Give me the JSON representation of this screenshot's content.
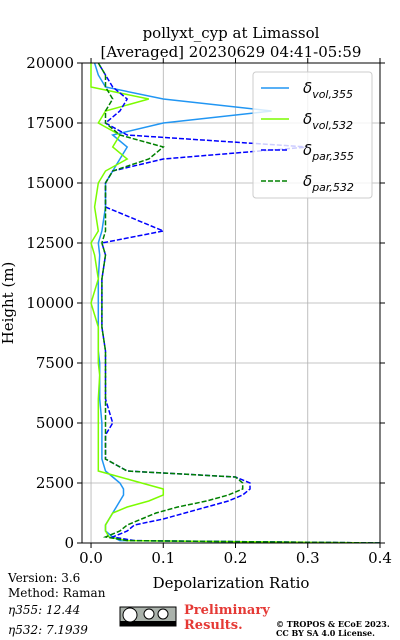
{
  "chart_data": {
    "type": "line",
    "title": [
      "pollyxt_cyp at Limassol",
      "[Averaged] 20230629 04:41-05:59"
    ],
    "x_label": "Depolarization Ratio",
    "y_label": "Height (m)",
    "xlim": [
      -0.0125,
      0.4
    ],
    "ylim": [
      0,
      20000
    ],
    "xticks": [
      {
        "value": 0,
        "label": "0.0"
      },
      0.1,
      0.2,
      0.3,
      0.4
    ],
    "yticks": [
      0,
      2500,
      5000,
      7500,
      10000,
      12500,
      15000,
      17500,
      20000
    ],
    "grid": true,
    "legend": "upper right",
    "y": [
      0,
      100,
      250,
      500,
      750,
      1000,
      1250,
      1500,
      1750,
      2000,
      2250,
      2500,
      2750,
      3000,
      3500,
      4000,
      4500,
      5000,
      6000,
      7000,
      7500,
      8000,
      9000,
      10000,
      11000,
      12000,
      12500,
      13000,
      14000,
      15000,
      15500,
      16000,
      16500,
      17000,
      17500,
      18000,
      18500,
      19000,
      19500,
      20000
    ],
    "series": [
      {
        "name": [
          "δ",
          "vol,355"
        ],
        "color": "#2196f3",
        "dash": false,
        "values": [
          0.4,
          0.04,
          0.03,
          0.02,
          0.02,
          0.025,
          0.03,
          0.035,
          0.04,
          0.045,
          0.045,
          0.04,
          0.03,
          0.02,
          0.015,
          0.015,
          0.015,
          0.015,
          0.012,
          0.012,
          0.012,
          0.01,
          0.01,
          0.01,
          0.01,
          0.012,
          0.01,
          0.015,
          0.02,
          0.02,
          0.03,
          0.04,
          0.05,
          0.03,
          0.1,
          0.25,
          0.1,
          0.02,
          0.01,
          0.005
        ]
      },
      {
        "name": [
          "δ",
          "vol,532"
        ],
        "color": "#7cfc00",
        "dash": false,
        "values": [
          0.4,
          0.05,
          0.025,
          0.02,
          0.02,
          0.025,
          0.03,
          0.05,
          0.08,
          0.1,
          0.1,
          0.07,
          0.04,
          0.01,
          0.01,
          0.01,
          0.01,
          0.01,
          0.01,
          0.012,
          0.01,
          0.01,
          0.01,
          0.0,
          0.01,
          0.005,
          0.0,
          0.01,
          0.005,
          0.01,
          0.02,
          0.05,
          0.03,
          0.04,
          0.01,
          0.02,
          0.08,
          0.0,
          0.0,
          0.0
        ]
      },
      {
        "name": [
          "δ",
          "par,355"
        ],
        "color": "#0000ff",
        "dash": true,
        "values": [
          0.4,
          0.06,
          0.03,
          0.05,
          0.06,
          0.1,
          0.13,
          0.16,
          0.19,
          0.21,
          0.22,
          0.22,
          0.2,
          0.05,
          0.02,
          0.02,
          0.02,
          0.03,
          0.02,
          0.02,
          0.02,
          0.02,
          0.015,
          0.015,
          0.015,
          0.02,
          0.015,
          0.1,
          0.02,
          0.02,
          0.03,
          0.1,
          0.3,
          0.05,
          0.02,
          0.04,
          0.05,
          0.03,
          0.02,
          0.01
        ]
      },
      {
        "name": [
          "δ",
          "par,532"
        ],
        "color": "#008000",
        "dash": true,
        "values": [
          0.4,
          0.05,
          0.02,
          0.04,
          0.05,
          0.07,
          0.09,
          0.12,
          0.16,
          0.19,
          0.21,
          0.21,
          0.2,
          0.05,
          0.02,
          0.02,
          0.02,
          0.02,
          0.02,
          0.02,
          0.02,
          0.02,
          0.015,
          0.015,
          0.015,
          0.02,
          0.015,
          0.02,
          0.02,
          0.02,
          0.03,
          0.08,
          0.1,
          0.04,
          0.02,
          0.02,
          0.03,
          0.02,
          0.02,
          0.01
        ]
      }
    ]
  },
  "footer": {
    "version": "Version: 3.6",
    "method": "Method: Raman",
    "eta355": "η355:  12.44",
    "eta532": "η532: 7.1939",
    "preliminary": [
      "Preliminary",
      "Results."
    ],
    "copyright": [
      "© TROPOS & ECoE 2023.",
      "CC BY SA 4.0 License."
    ]
  }
}
